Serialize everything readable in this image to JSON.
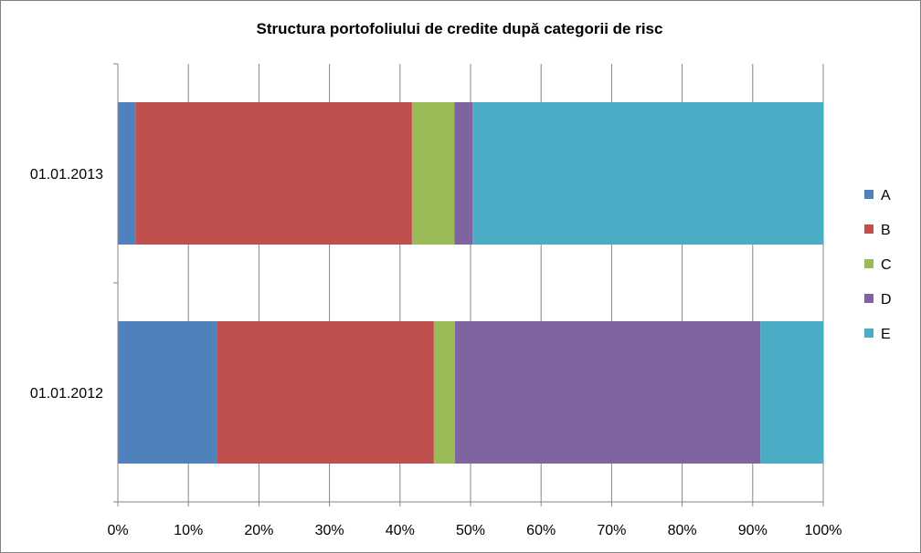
{
  "chart_data": {
    "type": "bar",
    "orientation": "horizontal",
    "stacked": "percent",
    "title": "Structura portofoliului de credite după categorii de risc",
    "categories": [
      "01.01.2013",
      "01.01.2012"
    ],
    "series": [
      {
        "name": "A",
        "color": "#4f81bd",
        "values": [
          2.5,
          14
        ]
      },
      {
        "name": "B",
        "color": "#c0504d",
        "values": [
          39.2,
          30.8
        ]
      },
      {
        "name": "C",
        "color": "#9bbb59",
        "values": [
          6,
          3
        ]
      },
      {
        "name": "D",
        "color": "#8064a2",
        "values": [
          2.6,
          43.3
        ]
      },
      {
        "name": "E",
        "color": "#4bacc6",
        "values": [
          49.7,
          8.9
        ]
      }
    ],
    "xlim": [
      0,
      100
    ],
    "xticks": [
      "0%",
      "10%",
      "20%",
      "30%",
      "40%",
      "50%",
      "60%",
      "70%",
      "80%",
      "90%",
      "100%"
    ],
    "grid": true,
    "legend": "right"
  }
}
